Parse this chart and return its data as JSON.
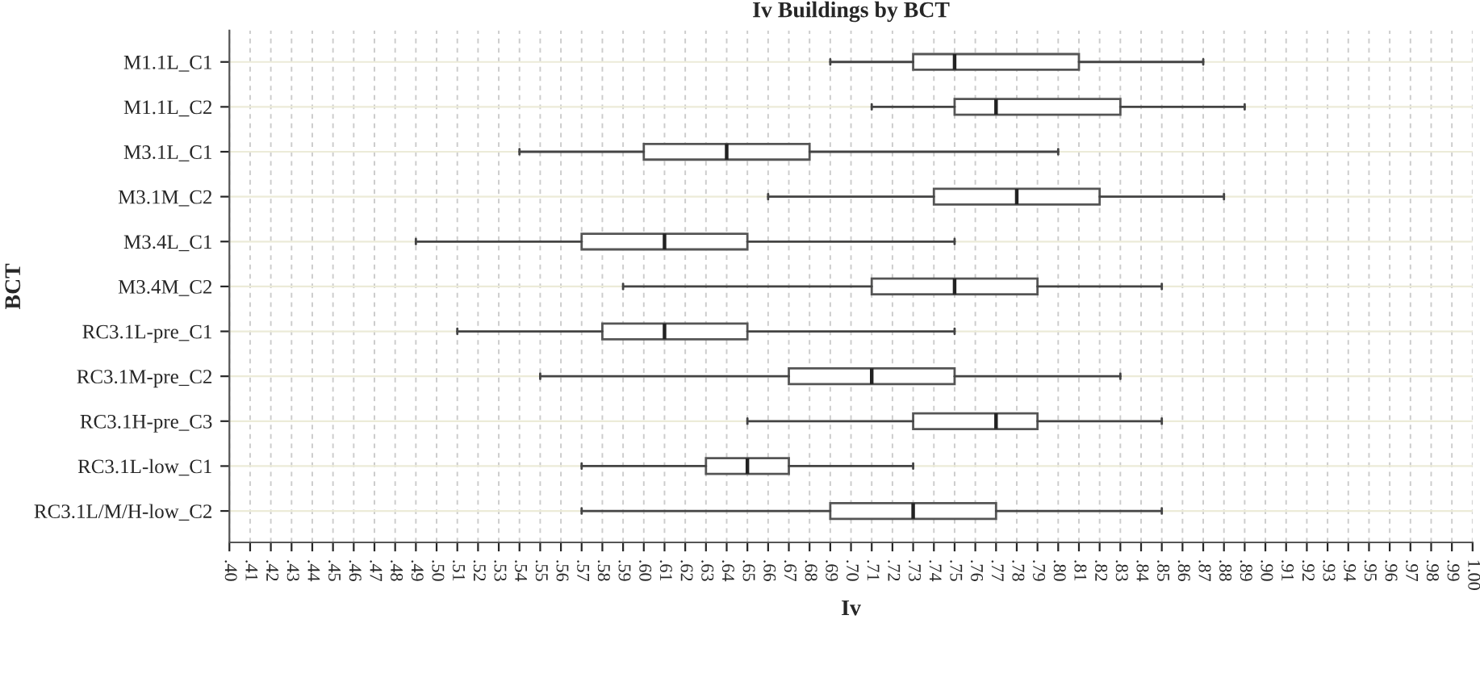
{
  "chart_data": {
    "type": "box",
    "title": "Iv Buildings by BCT",
    "xlabel": "Iv",
    "ylabel": "BCT",
    "orientation": "horizontal",
    "categories": [
      "M1.1L_C1",
      "M1.1L_C2",
      "M3.1L_C1",
      "M3.1M_C2",
      "M3.4L_C1",
      "M3.4M_C2",
      "RC3.1L-pre_C1",
      "RC3.1M-pre_C2",
      "RC3.1H-pre_C3",
      "RC3.1L-low_C1",
      "RC3.1L/M/H-low_C2"
    ],
    "boxes": [
      {
        "low": 0.69,
        "q1": 0.73,
        "median": 0.75,
        "q3": 0.81,
        "high": 0.87
      },
      {
        "low": 0.71,
        "q1": 0.75,
        "median": 0.77,
        "q3": 0.83,
        "high": 0.89
      },
      {
        "low": 0.54,
        "q1": 0.6,
        "median": 0.64,
        "q3": 0.68,
        "high": 0.8
      },
      {
        "low": 0.66,
        "q1": 0.74,
        "median": 0.78,
        "q3": 0.82,
        "high": 0.88
      },
      {
        "low": 0.49,
        "q1": 0.57,
        "median": 0.61,
        "q3": 0.65,
        "high": 0.75
      },
      {
        "low": 0.59,
        "q1": 0.71,
        "median": 0.75,
        "q3": 0.79,
        "high": 0.85
      },
      {
        "low": 0.51,
        "q1": 0.58,
        "median": 0.61,
        "q3": 0.65,
        "high": 0.75
      },
      {
        "low": 0.55,
        "q1": 0.67,
        "median": 0.71,
        "q3": 0.75,
        "high": 0.83
      },
      {
        "low": 0.65,
        "q1": 0.73,
        "median": 0.77,
        "q3": 0.79,
        "high": 0.85
      },
      {
        "low": 0.57,
        "q1": 0.63,
        "median": 0.65,
        "q3": 0.67,
        "high": 0.73
      },
      {
        "low": 0.57,
        "q1": 0.69,
        "median": 0.73,
        "q3": 0.77,
        "high": 0.85
      }
    ],
    "color": "#ffffff",
    "xlim": [
      0.4,
      1.0
    ],
    "xticks": [
      {
        "value": 0.4,
        "label": ".40"
      },
      {
        "value": 0.41,
        "label": ".41"
      },
      {
        "value": 0.42,
        "label": ".42"
      },
      {
        "value": 0.43,
        "label": ".43"
      },
      {
        "value": 0.44,
        "label": ".44"
      },
      {
        "value": 0.45,
        "label": ".45"
      },
      {
        "value": 0.46,
        "label": ".46"
      },
      {
        "value": 0.47,
        "label": ".47"
      },
      {
        "value": 0.48,
        "label": ".48"
      },
      {
        "value": 0.49,
        "label": ".49"
      },
      {
        "value": 0.5,
        "label": ".50"
      },
      {
        "value": 0.51,
        "label": ".51"
      },
      {
        "value": 0.52,
        "label": ".52"
      },
      {
        "value": 0.53,
        "label": ".53"
      },
      {
        "value": 0.54,
        "label": ".54"
      },
      {
        "value": 0.55,
        "label": ".55"
      },
      {
        "value": 0.56,
        "label": ".56"
      },
      {
        "value": 0.57,
        "label": ".57"
      },
      {
        "value": 0.58,
        "label": ".58"
      },
      {
        "value": 0.59,
        "label": ".59"
      },
      {
        "value": 0.6,
        "label": ".60"
      },
      {
        "value": 0.61,
        "label": ".61"
      },
      {
        "value": 0.62,
        "label": ".62"
      },
      {
        "value": 0.63,
        "label": ".63"
      },
      {
        "value": 0.64,
        "label": ".64"
      },
      {
        "value": 0.65,
        "label": ".65"
      },
      {
        "value": 0.66,
        "label": ".66"
      },
      {
        "value": 0.67,
        "label": ".67"
      },
      {
        "value": 0.68,
        "label": ".68"
      },
      {
        "value": 0.69,
        "label": ".69"
      },
      {
        "value": 0.7,
        "label": ".70"
      },
      {
        "value": 0.71,
        "label": ".71"
      },
      {
        "value": 0.72,
        "label": ".72"
      },
      {
        "value": 0.73,
        "label": ".73"
      },
      {
        "value": 0.74,
        "label": ".74"
      },
      {
        "value": 0.75,
        "label": ".75"
      },
      {
        "value": 0.76,
        "label": ".76"
      },
      {
        "value": 0.77,
        "label": ".77"
      },
      {
        "value": 0.78,
        "label": ".78"
      },
      {
        "value": 0.79,
        "label": ".79"
      },
      {
        "value": 0.8,
        "label": ".80"
      },
      {
        "value": 0.81,
        "label": ".81"
      },
      {
        "value": 0.82,
        "label": ".82"
      },
      {
        "value": 0.83,
        "label": ".83"
      },
      {
        "value": 0.84,
        "label": ".84"
      },
      {
        "value": 0.85,
        "label": ".85"
      },
      {
        "value": 0.86,
        "label": ".86"
      },
      {
        "value": 0.87,
        "label": ".87"
      },
      {
        "value": 0.88,
        "label": ".88"
      },
      {
        "value": 0.89,
        "label": ".89"
      },
      {
        "value": 0.9,
        "label": ".90"
      },
      {
        "value": 0.91,
        "label": ".91"
      },
      {
        "value": 0.92,
        "label": ".92"
      },
      {
        "value": 0.93,
        "label": ".93"
      },
      {
        "value": 0.94,
        "label": ".94"
      },
      {
        "value": 0.95,
        "label": ".95"
      },
      {
        "value": 0.96,
        "label": ".96"
      },
      {
        "value": 0.97,
        "label": ".97"
      },
      {
        "value": 0.98,
        "label": ".98"
      },
      {
        "value": 0.99,
        "label": ".99"
      },
      {
        "value": 1.0,
        "label": "1.00"
      }
    ],
    "grid": true
  }
}
